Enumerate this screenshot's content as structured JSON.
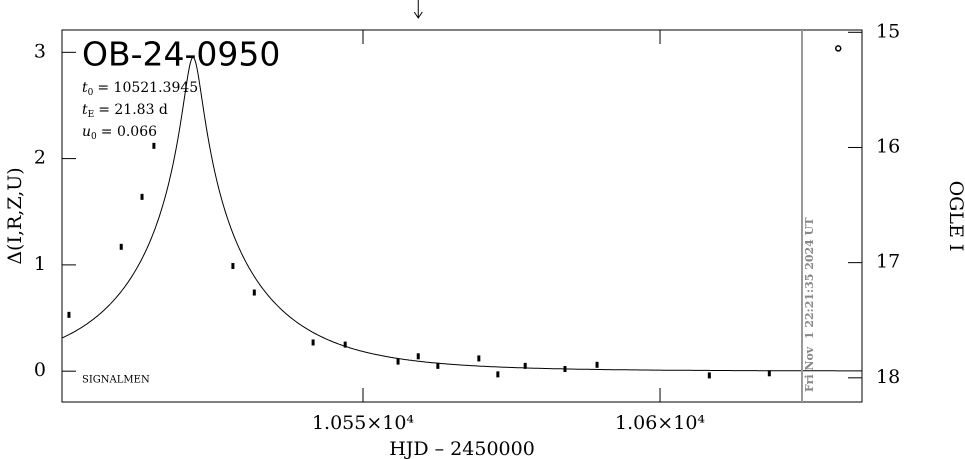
{
  "chart_data": {
    "type": "scatter",
    "title": "OB-24-0950",
    "credit": "SIGNALMEN",
    "xlabel": "HJD – 2450000",
    "ylabel": "Δ(I,R,Z,U)",
    "y2label": "OGLE I",
    "annotations": [
      {
        "symbol": "t",
        "subscript": "0",
        "text": "= 10521.3945"
      },
      {
        "symbol": "t",
        "subscript": "E",
        "text": "= 21.83  d"
      },
      {
        "symbol": "u",
        "subscript": "0",
        "text": "= 0.066"
      }
    ],
    "model": {
      "t0": 10521.3945,
      "tE": 21.83,
      "u0": 0.066
    },
    "date_line": {
      "x": 10623.9,
      "label": "Fri Nov  1 22:21:35 2024 UT"
    },
    "arrow_x": 10559.3,
    "reference_point": {
      "x": 10630.0,
      "y": 15.14
    },
    "color": "#000000",
    "x": [
      10500.5,
      10509.3,
      10512.8,
      10514.8,
      10528.1,
      10531.7,
      10541.6,
      10547.0,
      10555.9,
      10559.3,
      10562.6,
      10569.5,
      10572.7,
      10577.3,
      10584.0,
      10589.4,
      10608.3,
      10618.4
    ],
    "values": [
      0.53,
      1.17,
      1.64,
      2.12,
      0.99,
      0.74,
      0.27,
      0.25,
      0.09,
      0.14,
      0.05,
      0.12,
      -0.03,
      0.05,
      0.02,
      0.06,
      -0.04,
      -0.02
    ],
    "xlim": [
      10499.33,
      10634.0
    ],
    "xticks": [
      {
        "value": 10550,
        "label": "1.055×10⁴"
      },
      {
        "value": 10600,
        "label": "1.06×10⁴"
      }
    ],
    "ylim": [
      -0.29,
      3.21
    ],
    "yticks": [
      0,
      1,
      2,
      3
    ],
    "y2lim": [
      18.21,
      14.98
    ],
    "y2ticks": [
      15,
      16,
      17,
      18
    ]
  }
}
